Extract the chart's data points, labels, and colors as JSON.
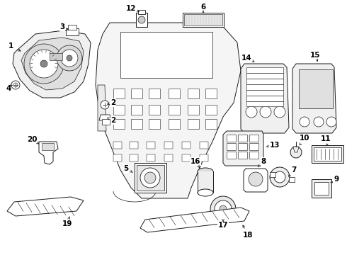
{
  "background_color": "#ffffff",
  "figsize": [
    4.9,
    3.6
  ],
  "dpi": 100,
  "line_color": "#1a1a1a",
  "lw": 0.7
}
